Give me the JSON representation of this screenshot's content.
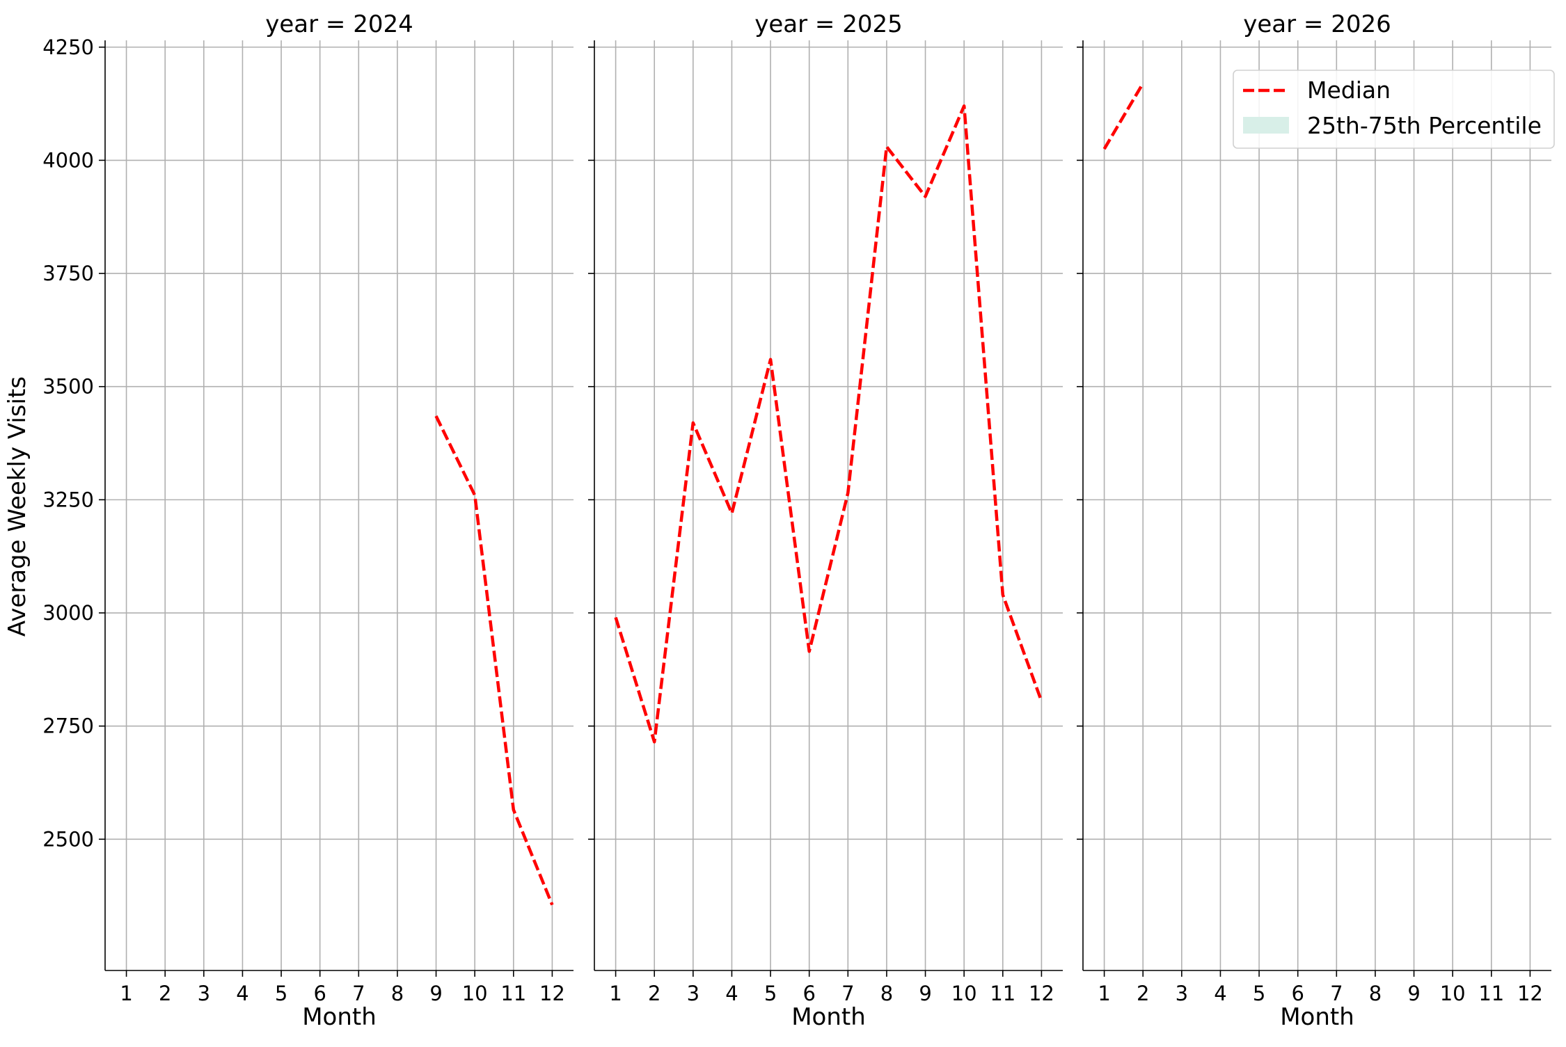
{
  "chart_data": {
    "type": "line",
    "ylabel": "Average Weekly Visits",
    "xlabel": "Month",
    "ylim": [
      2210,
      4265
    ],
    "yticks": [
      2500,
      2750,
      3000,
      3250,
      3500,
      3750,
      4000,
      4250
    ],
    "xticks": [
      1,
      2,
      3,
      4,
      5,
      6,
      7,
      8,
      9,
      10,
      11,
      12
    ],
    "xlim": [
      0.45,
      12.55
    ],
    "grid": true,
    "colors": {
      "median": "#ff0000",
      "band": "#d8efe8",
      "grid": "#b0b0b0"
    },
    "legend": {
      "placement": "top-right",
      "entries": [
        {
          "label": "Median",
          "style": "dashed-line",
          "color": "#ff0000"
        },
        {
          "label": "25th-75th Percentile",
          "style": "patch",
          "color": "#d8efe8"
        }
      ]
    },
    "panels": [
      {
        "title": "year = 2024",
        "series": [
          {
            "name": "Median",
            "x": [
              9,
              10,
              11,
              12
            ],
            "y": [
              3435,
              3260,
              2565,
              2355
            ]
          }
        ]
      },
      {
        "title": "year = 2025",
        "series": [
          {
            "name": "Median",
            "x": [
              1,
              2,
              3,
              4,
              5,
              6,
              7,
              8,
              9,
              10,
              11,
              12
            ],
            "y": [
              2990,
              2715,
              3420,
              3220,
              3560,
              2915,
              3265,
              4030,
              3920,
              4120,
              3040,
              2805
            ]
          }
        ]
      },
      {
        "title": "year = 2026",
        "series": [
          {
            "name": "Median",
            "x": [
              1,
              2
            ],
            "y": [
              4025,
              4170
            ]
          }
        ]
      }
    ]
  }
}
